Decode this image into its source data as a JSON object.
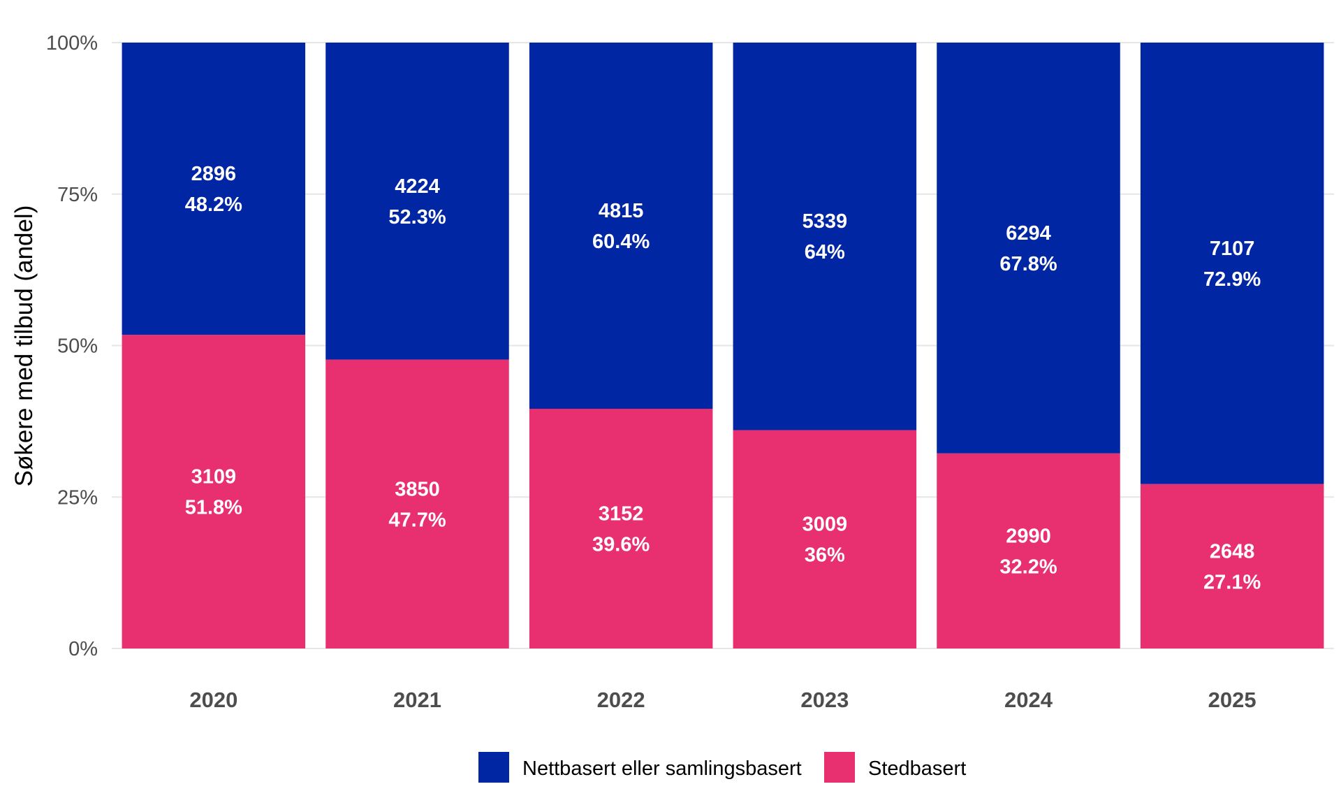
{
  "chart_data": {
    "type": "bar",
    "stacked": true,
    "normalized": true,
    "categories": [
      "2020",
      "2021",
      "2022",
      "2023",
      "2024",
      "2025"
    ],
    "series": [
      {
        "name": "Nettbasert eller samlingsbasert",
        "color": "#0026A3",
        "values": [
          2896,
          4224,
          4815,
          5339,
          6294,
          7107
        ],
        "percent_labels": [
          "48.2%",
          "52.3%",
          "60.4%",
          "64%",
          "67.8%",
          "72.9%"
        ]
      },
      {
        "name": "Stedbasert",
        "color": "#E83071",
        "values": [
          3109,
          3850,
          3152,
          3009,
          2990,
          2648
        ],
        "percent_labels": [
          "51.8%",
          "47.7%",
          "39.6%",
          "36%",
          "32.2%",
          "27.1%"
        ]
      }
    ],
    "ylabel": "Søkere med tilbud (andel)",
    "xlabel": "",
    "ylim": [
      0,
      1
    ],
    "yticks": [
      0,
      0.25,
      0.5,
      0.75,
      1
    ],
    "ytick_labels": [
      "0%",
      "25%",
      "50%",
      "75%",
      "100%"
    ],
    "grid": true,
    "legend_position": "bottom"
  }
}
